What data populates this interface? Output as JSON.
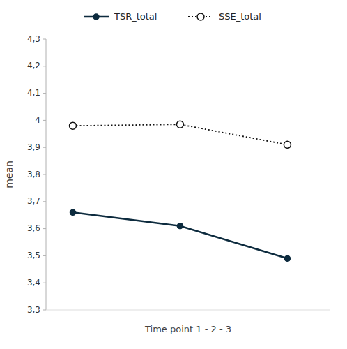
{
  "chart_data": {
    "type": "line",
    "xlabel": "Time point  1 - 2 - 3",
    "ylabel": "mean",
    "x": [
      1,
      2,
      3
    ],
    "xlim": [
      0.75,
      3.4
    ],
    "ylim": [
      3.3,
      4.3
    ],
    "yticks": [
      {
        "value": 3.3,
        "label": "3,3"
      },
      {
        "value": 3.4,
        "label": "3,4"
      },
      {
        "value": 3.5,
        "label": "3,5"
      },
      {
        "value": 3.6,
        "label": "3,6"
      },
      {
        "value": 3.7,
        "label": "3,7"
      },
      {
        "value": 3.8,
        "label": "3,8"
      },
      {
        "value": 3.9,
        "label": "3,9"
      },
      4,
      {
        "value": 4.1,
        "label": "4,1"
      },
      {
        "value": 4.2,
        "label": "4,2"
      },
      {
        "value": 4.3,
        "label": "4,3"
      }
    ],
    "tick_labels": "y",
    "grid": false,
    "legend": "top",
    "series": [
      {
        "name": "TSR_total",
        "color": "#0d2b3e",
        "marker": "circle",
        "line_style": "solid",
        "values": [
          3.66,
          3.61,
          3.49
        ]
      },
      {
        "name": "SSE_total",
        "color": "#111111",
        "marker": "open-circle",
        "line_style": "dotted",
        "values": [
          3.98,
          3.985,
          3.91
        ]
      }
    ]
  }
}
